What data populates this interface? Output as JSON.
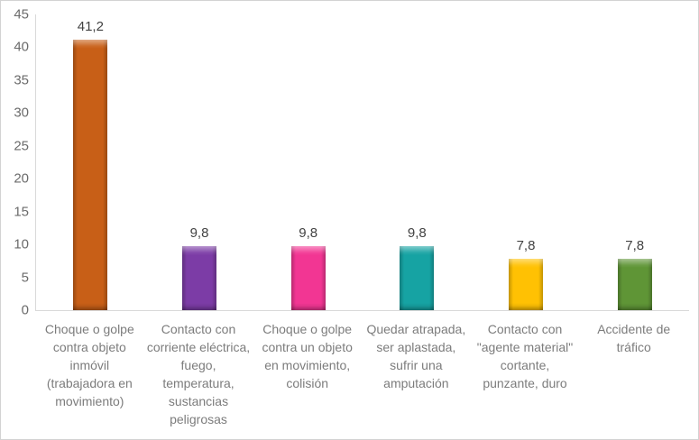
{
  "chart_data": {
    "type": "bar",
    "title": "",
    "xlabel": "",
    "ylabel": "",
    "legend": "none",
    "grid": false,
    "ylim": [
      0,
      45
    ],
    "y_ticks": [
      0,
      5,
      10,
      15,
      20,
      25,
      30,
      35,
      40,
      45
    ],
    "categories": [
      "Choque o golpe contra objeto inmóvil (trabajadora en movimiento)",
      "Contacto con corriente eléctrica, fuego, temperatura, sustancias peligrosas",
      "Choque o golpe contra un objeto en movimiento, colisión",
      "Quedar atrapada, ser aplastada, sufrir una amputación",
      "Contacto con \"agente material\" cortante, punzante, duro",
      "Accidente de tráfico"
    ],
    "values": [
      41.2,
      9.8,
      9.8,
      9.8,
      7.8,
      7.8
    ],
    "value_labels": [
      "41,2",
      "9,8",
      "9,8",
      "9,8",
      "7,8",
      "7,8"
    ],
    "bar_colors": [
      "#c85f17",
      "#7c3ca6",
      "#f23693",
      "#16a3a3",
      "#ffc103",
      "#5f9536"
    ],
    "colors": {
      "axis_line": "#d9d9d9",
      "outer_border": "#d3d3d3",
      "tick_label": "#6b6b6b",
      "category_label": "#7c7c7c",
      "data_label": "#424242",
      "background": "#ffffff"
    }
  }
}
